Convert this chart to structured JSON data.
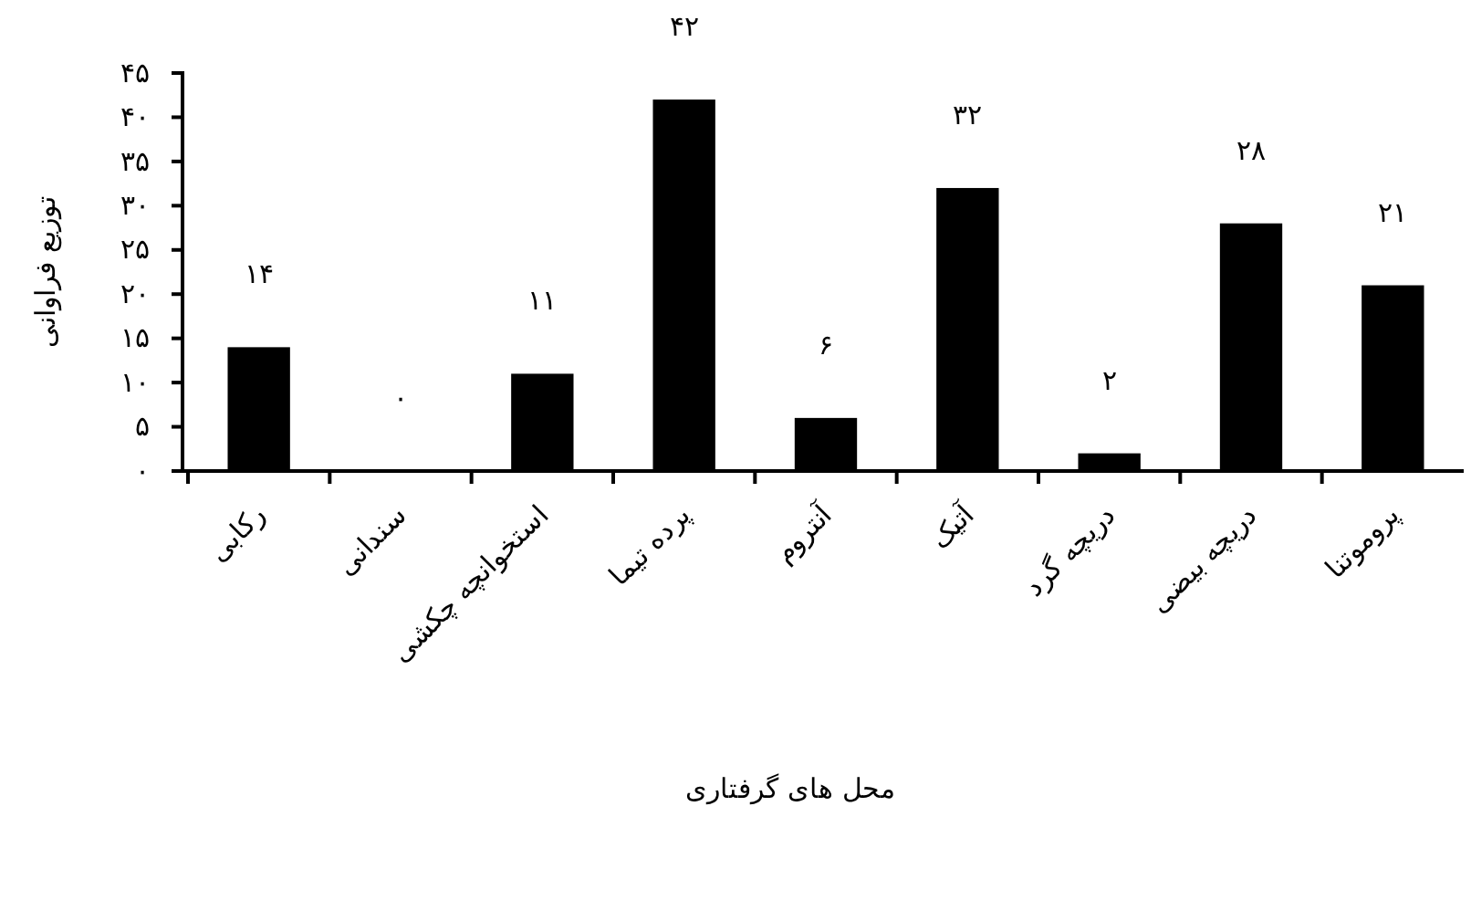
{
  "chart_data": {
    "type": "bar",
    "xlabel": "محل های گرفتاری",
    "ylabel": "توزیع فراوانی",
    "categories": [
      "رکابی",
      "سندانی",
      "استخوانچه چکشی",
      "پرده تیما",
      "آنتروم",
      "آتیک",
      "دریچه گرد",
      "دریچه بیضی",
      "پروموتنا"
    ],
    "values": [
      14,
      0,
      11,
      42,
      6,
      32,
      2,
      28,
      21
    ],
    "value_labels": [
      "۱۴",
      "۰",
      "۱۱",
      "۴۲",
      "۶",
      "۳۲",
      "۲",
      "۲۸",
      "۲۱"
    ],
    "color": "#000000",
    "ylim": [
      0,
      45
    ],
    "yticks": [
      {
        "value": 0,
        "label": "۰"
      },
      {
        "value": 5,
        "label": "۵"
      },
      {
        "value": 10,
        "label": "۱۰"
      },
      {
        "value": 15,
        "label": "۱۵"
      },
      {
        "value": 20,
        "label": "۲۰"
      },
      {
        "value": 25,
        "label": "۲۵"
      },
      {
        "value": 30,
        "label": "۳۰"
      },
      {
        "value": 35,
        "label": "۳۵"
      },
      {
        "value": 40,
        "label": "۴۰"
      },
      {
        "value": 45,
        "label": "۴۵"
      }
    ],
    "grid": false
  }
}
